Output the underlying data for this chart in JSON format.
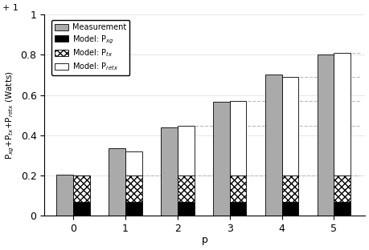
{
  "x_labels": [
    "0",
    "1",
    "2",
    "3",
    "4",
    "5"
  ],
  "x_values": [
    0,
    1,
    2,
    3,
    4,
    5
  ],
  "measurement": [
    0.205,
    0.335,
    0.44,
    0.565,
    0.7,
    0.8
  ],
  "p_xg": [
    0.07,
    0.07,
    0.07,
    0.07,
    0.07,
    0.07
  ],
  "p_tx": [
    0.13,
    0.13,
    0.13,
    0.13,
    0.13,
    0.13
  ],
  "p_retx_model": [
    0.0,
    0.12,
    0.245,
    0.37,
    0.49,
    0.61
  ],
  "bar_width": 0.32,
  "gray_color": "#aaaaaa",
  "black_color": "#000000",
  "white_color": "#ffffff",
  "ylabel": "P$_{xg}$+P$_{tx}$+P$_{retx}$ (Watts)",
  "xlabel": "p",
  "ylim": [
    0,
    1.0
  ],
  "yticks": [
    0,
    0.2,
    0.4,
    0.6,
    0.8,
    1.0
  ],
  "ytick_labels": [
    "0",
    "0.2",
    "0.4",
    "0.6",
    "0.8",
    "1"
  ],
  "legend_measurement": "Measurement",
  "legend_pxg": "Model: P$_{xg}$",
  "legend_ptx": "Model: P$_{tx}$",
  "legend_pretx": "Model: P$_{retx}$",
  "grid_color": "#bbbbbb",
  "title_top": "+ 1"
}
